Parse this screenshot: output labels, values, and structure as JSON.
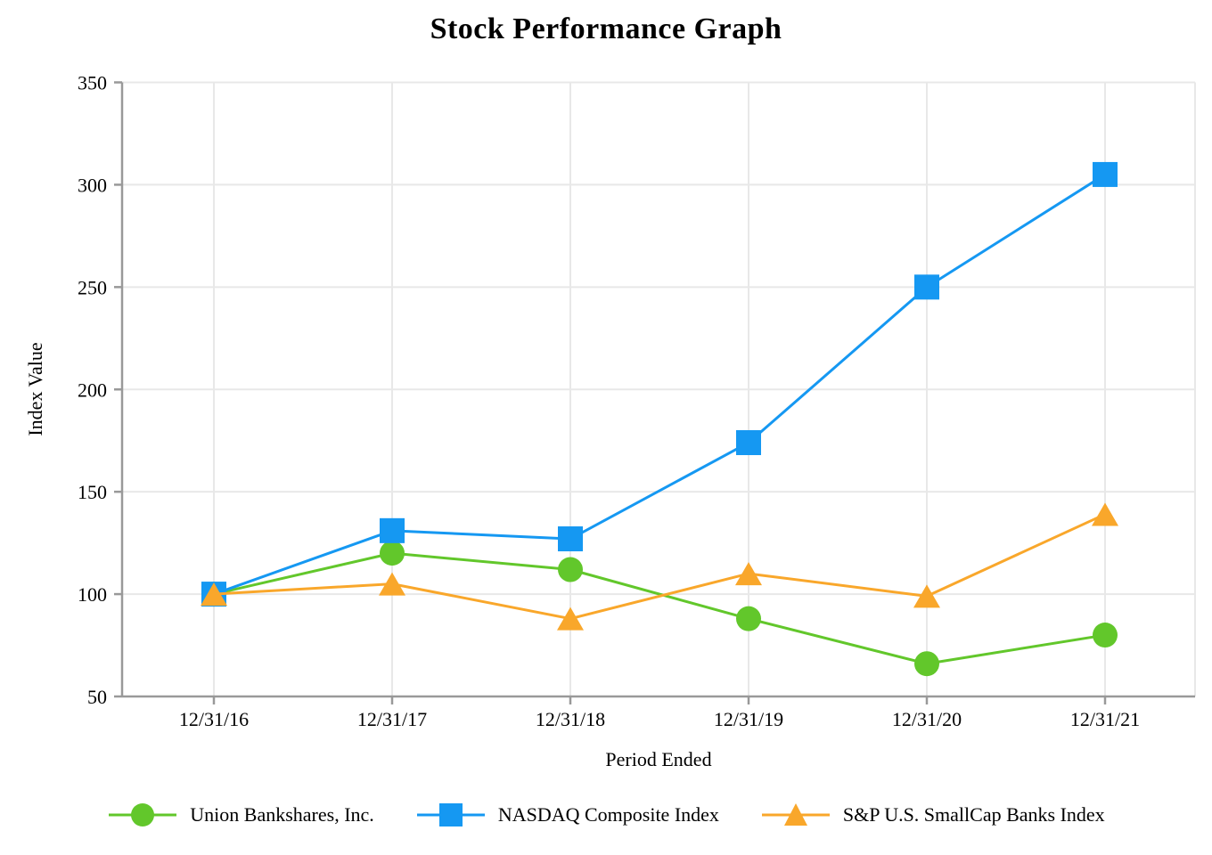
{
  "chart_data": {
    "type": "line",
    "title": "Stock Performance Graph",
    "xlabel": "Period Ended",
    "ylabel": "Index Value",
    "categories": [
      "12/31/16",
      "12/31/17",
      "12/31/18",
      "12/31/19",
      "12/31/20",
      "12/31/21"
    ],
    "yticks": [
      50,
      100,
      150,
      200,
      250,
      300,
      350
    ],
    "ylim": [
      50,
      350
    ],
    "grid": true,
    "legend_position": "bottom",
    "grid_color": "#E8E8E8",
    "axis_color": "#999999",
    "text_color": "#000000",
    "series": [
      {
        "name": "Union Bankshares, Inc.",
        "marker": "circle",
        "color": "#62C72B",
        "values": [
          100,
          120,
          112,
          88,
          66,
          80
        ]
      },
      {
        "name": "NASDAQ Composite Index",
        "marker": "square",
        "color": "#1598F2",
        "values": [
          100,
          131,
          127,
          174,
          250,
          305
        ]
      },
      {
        "name": "S&P U.S. SmallCap Banks Index",
        "marker": "triangle",
        "color": "#F9A72B",
        "values": [
          100,
          105,
          88,
          110,
          99,
          139
        ]
      }
    ]
  }
}
